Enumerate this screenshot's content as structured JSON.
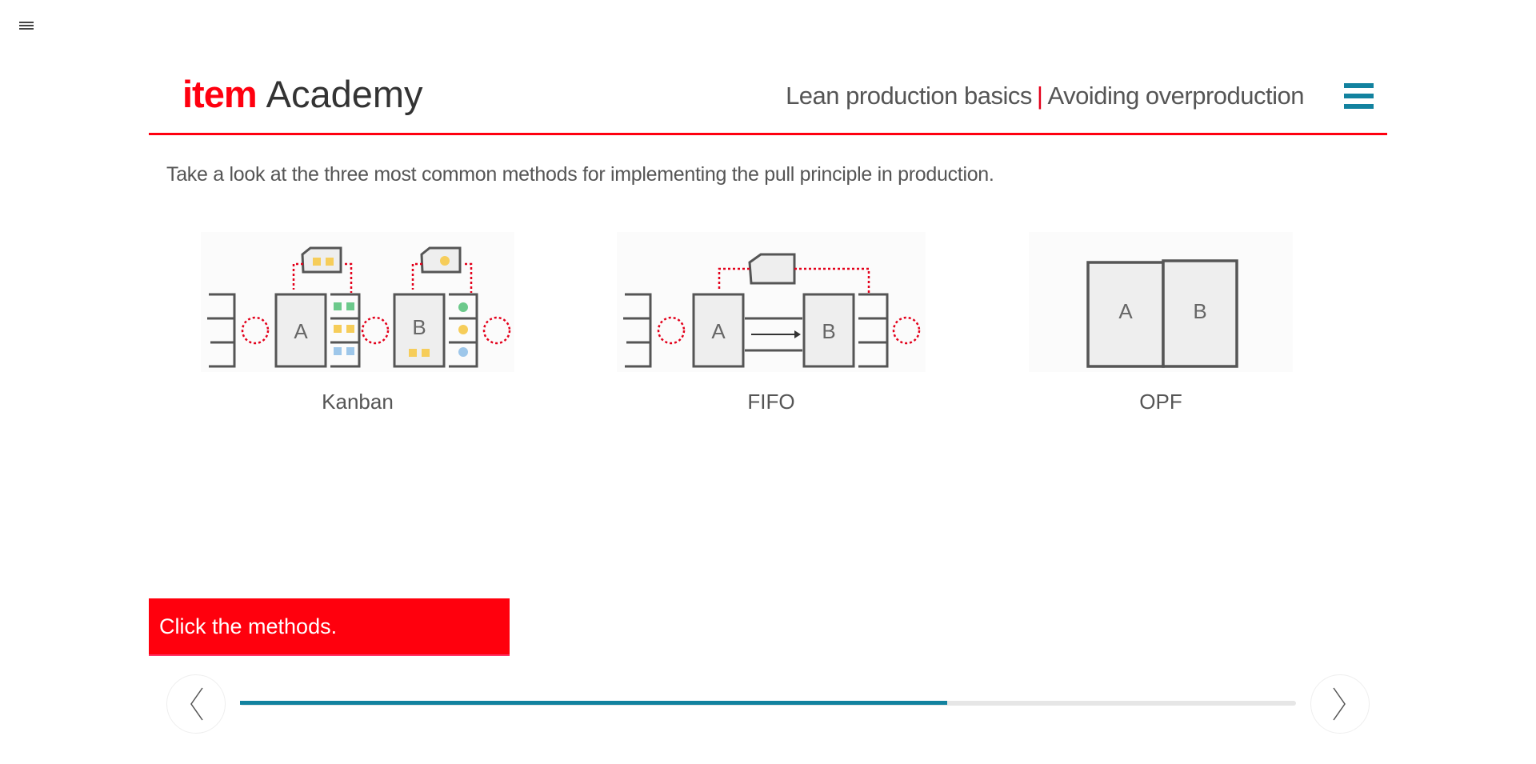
{
  "header": {
    "brand": "item",
    "product": "Academy",
    "breadcrumb": {
      "course": "Lean production basics",
      "separator": "|",
      "chapter": "Avoiding overproduction"
    },
    "menu_icon": "hamburger-icon",
    "accent_color": "#12829f",
    "brand_color": "#ff000f"
  },
  "content": {
    "intro": "Take a look at the three most common methods for implementing the pull principle in production.",
    "methods": [
      {
        "label": "Kanban",
        "station_a": "A",
        "station_b": "B"
      },
      {
        "label": "FIFO",
        "station_a": "A",
        "station_b": "B"
      },
      {
        "label": "OPF",
        "station_a": "A",
        "station_b": "B"
      }
    ],
    "hint": "Click the methods."
  },
  "navigation": {
    "prev_icon": "chevron-left-icon",
    "next_icon": "chevron-right-icon",
    "progress_percent": 67
  }
}
